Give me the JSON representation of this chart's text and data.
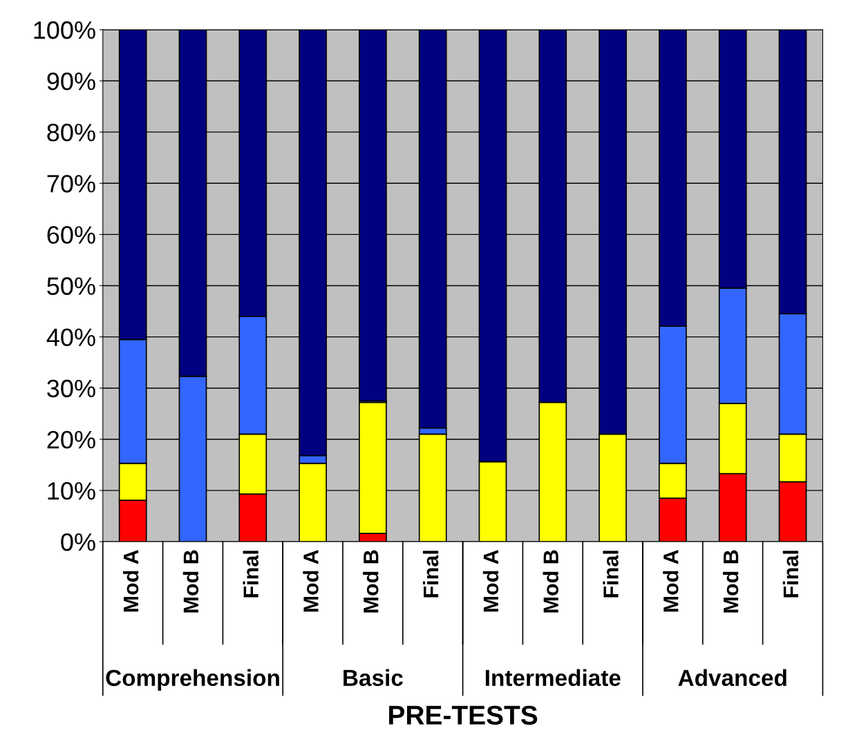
{
  "chart_data": {
    "type": "bar",
    "stacked": true,
    "xlabel": "PRE-TESTS",
    "categories": [
      "Mod A",
      "Mod B",
      "Final",
      "Mod A",
      "Mod B",
      "Final",
      "Mod A",
      "Mod B",
      "Final",
      "Mod A",
      "Mod B",
      "Final"
    ],
    "series": [
      {
        "color": "#ff0000",
        "values": [
          8.1,
          null,
          9.3,
          null,
          1.6,
          null,
          null,
          null,
          null,
          8.5,
          13.3,
          11.7
        ]
      },
      {
        "color": "#ffff00",
        "values": [
          7.2,
          null,
          11.7,
          15.3,
          25.6,
          21.0,
          15.6,
          27.2,
          21.0,
          6.8,
          13.7,
          9.3
        ]
      },
      {
        "color": "#3366ff",
        "values": [
          24.2,
          32.3,
          23.0,
          1.5,
          0.3,
          1.2,
          null,
          null,
          null,
          26.8,
          22.5,
          23.5
        ]
      },
      {
        "color": "#000080",
        "values": [
          60.5,
          67.7,
          56.0,
          83.2,
          72.5,
          77.8,
          84.4,
          72.8,
          79.0,
          57.9,
          50.5,
          55.5
        ]
      }
    ],
    "annotations": [
      "Comprehension",
      "Basic",
      "Intermediate",
      "Advanced"
    ],
    "ylim": [
      0,
      100
    ],
    "yticks": [
      {
        "value": 0,
        "label": "0%"
      },
      {
        "value": 10,
        "label": "10%"
      },
      {
        "value": 20,
        "label": "20%"
      },
      {
        "value": 30,
        "label": "30%"
      },
      {
        "value": 40,
        "label": "40%"
      },
      {
        "value": 50,
        "label": "50%"
      },
      {
        "value": 60,
        "label": "60%"
      },
      {
        "value": 70,
        "label": "70%"
      },
      {
        "value": 80,
        "label": "80%"
      },
      {
        "value": 90,
        "label": "90%"
      },
      {
        "value": 100,
        "label": "100%"
      }
    ],
    "grid": "y",
    "legend": false
  }
}
